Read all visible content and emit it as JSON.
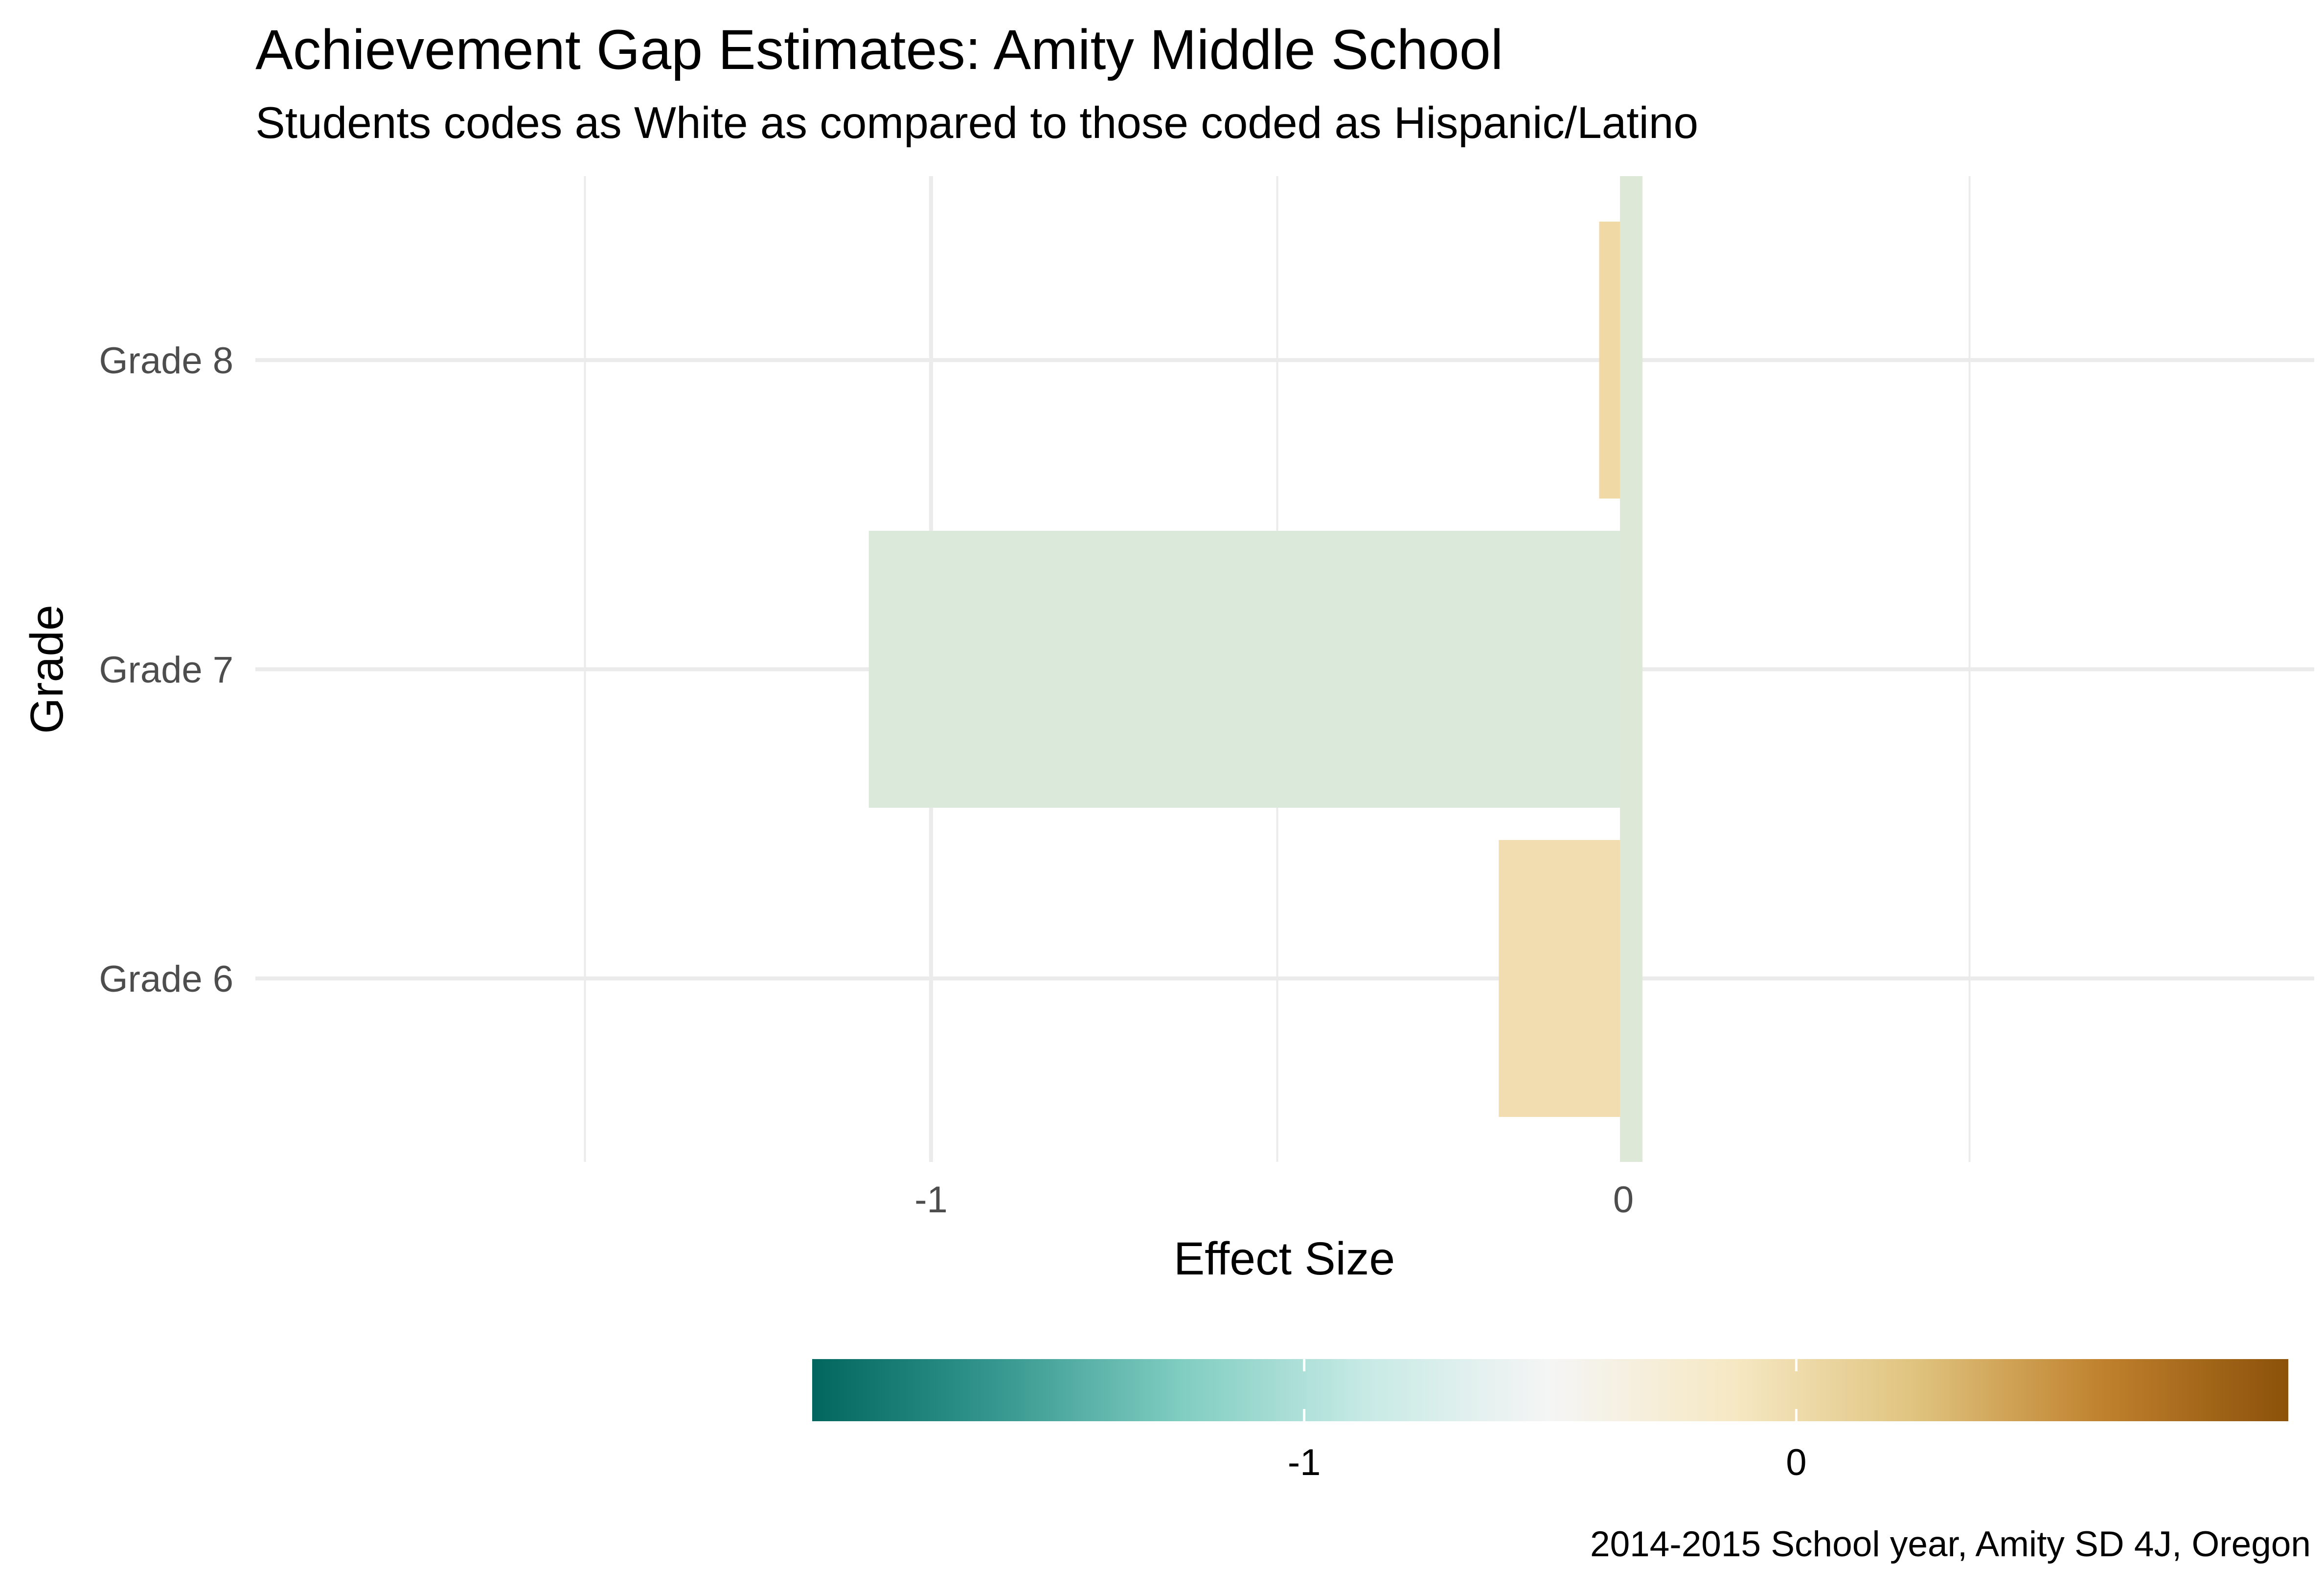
{
  "chart_data": {
    "type": "bar",
    "orientation": "horizontal",
    "title": "Achievement Gap Estimates: Amity Middle School",
    "subtitle": "Students codes as White as compared to those coded as Hispanic/Latino",
    "caption": "2014-2015 School year, Amity SD 4J, Oregon",
    "xlabel": "Effect Size",
    "ylabel": "Grade",
    "categories": [
      "Grade 6",
      "Grade 7",
      "Grade 8"
    ],
    "values": [
      -0.18,
      -1.09,
      -0.035
    ],
    "x_ticks": [
      -1,
      0
    ],
    "xlim": [
      -2.0,
      2.0
    ],
    "reference_line": 0,
    "grid": true,
    "legend": {
      "type": "colorbar",
      "position": "bottom",
      "range": [
        -2.0,
        1.0
      ],
      "ticks": [
        -1,
        0
      ]
    },
    "colors": {
      "palette": [
        "#01665e",
        "#35978f",
        "#80cdc1",
        "#c7eae5",
        "#f5f5f5",
        "#f6e8c3",
        "#dfc27d",
        "#bf812d",
        "#8c510a"
      ],
      "grade_7_bar": "#dbe9da",
      "grade_6_bar": "#f1ddaf",
      "grade_8_bar": "#f1d9a6",
      "zero_line": "#dde8d6",
      "grid": "#ebebeb"
    }
  }
}
